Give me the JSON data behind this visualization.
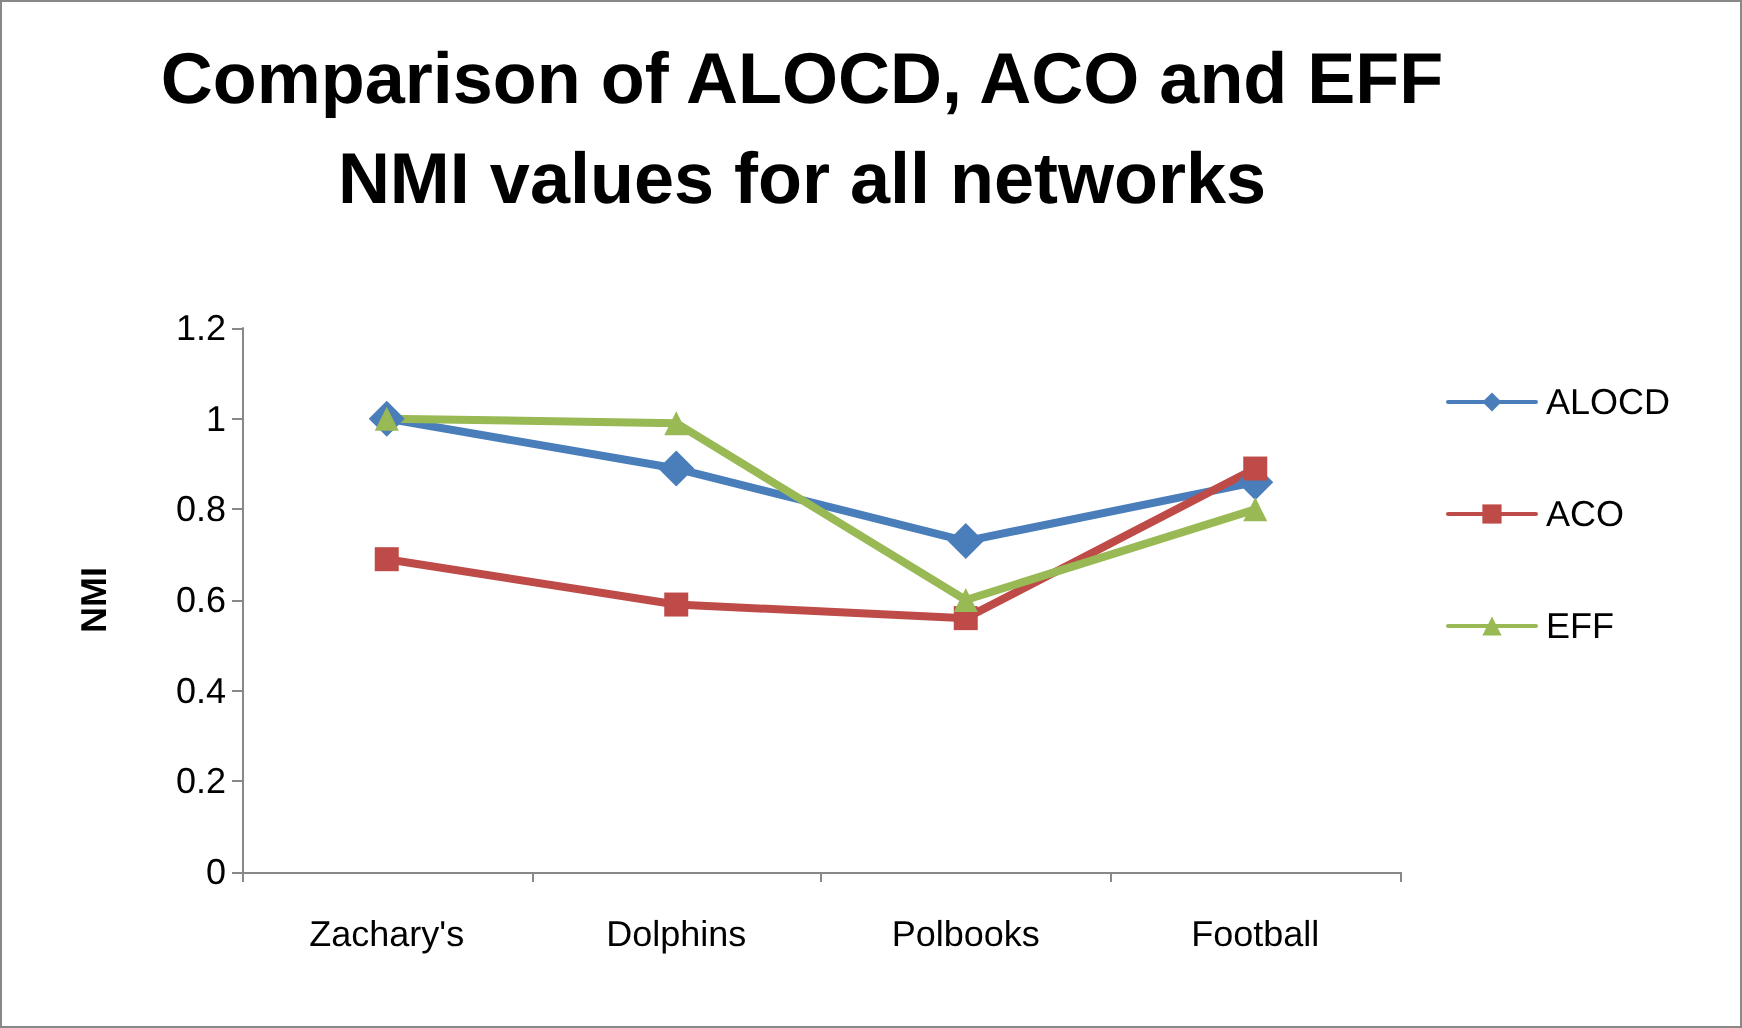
{
  "chart_data": {
    "type": "line",
    "title": "Comparison of ALOCD, ACO and EFF\nNMI values for all networks",
    "ylabel": "NMI",
    "categories": [
      "Zachary's",
      "Dolphins",
      "Polbooks",
      "Football"
    ],
    "series": [
      {
        "name": "ALOCD",
        "color": "#4a7ebb",
        "marker": "diamond",
        "values": [
          1.0,
          0.89,
          0.73,
          0.86
        ]
      },
      {
        "name": "ACO",
        "color": "#be4b48",
        "marker": "square",
        "values": [
          0.69,
          0.59,
          0.56,
          0.89
        ]
      },
      {
        "name": "EFF",
        "color": "#98b954",
        "marker": "triangle",
        "values": [
          1.0,
          0.99,
          0.6,
          0.8
        ]
      }
    ],
    "ylim": [
      0,
      1.2
    ],
    "yticks": [
      0,
      0.2,
      0.4,
      0.6,
      0.8,
      1,
      1.2
    ],
    "grid": false,
    "legend": "right"
  }
}
